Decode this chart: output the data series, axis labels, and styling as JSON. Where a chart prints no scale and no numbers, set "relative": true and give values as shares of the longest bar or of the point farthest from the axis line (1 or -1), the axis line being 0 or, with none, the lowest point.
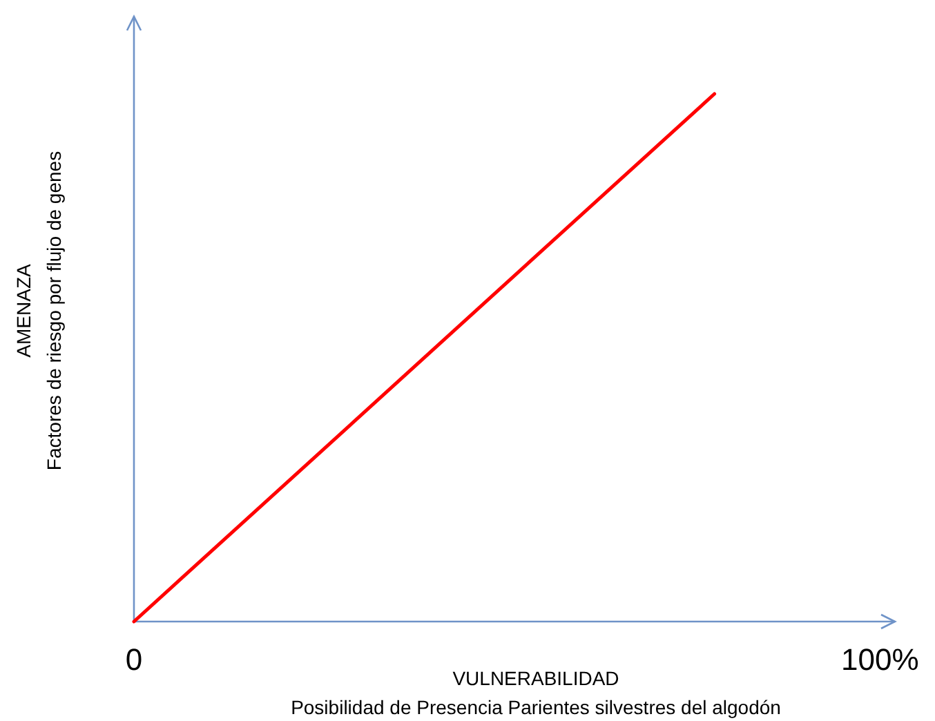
{
  "chart_data": {
    "type": "line",
    "relative": true,
    "xlabel": "VULNERABILIDAD\nPosibilidad de Presencia Parientes silvestres del algodón",
    "ylabel": "AMENAZA\nFactores de riesgo por flujo de genes",
    "x": [
      0,
      77.8
    ],
    "xlim": [
      0,
      102
    ],
    "xticks": [
      0,
      {
        "value": 100,
        "label": "100%"
      }
    ],
    "series": [
      {
        "color": "#ff0000",
        "values": [
          0,
          1
        ]
      }
    ]
  }
}
